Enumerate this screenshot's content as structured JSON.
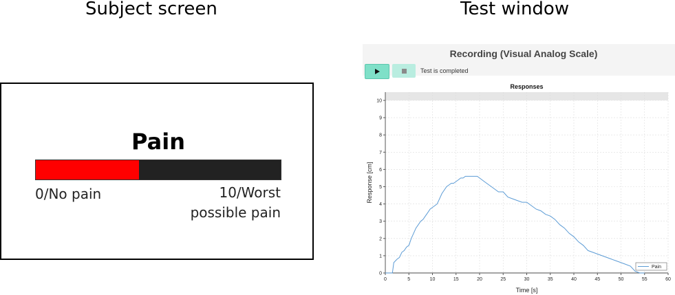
{
  "headings": {
    "subject": "Subject screen",
    "test": "Test window"
  },
  "subject_screen": {
    "title": "Pain",
    "scale_value": 4.2,
    "scale_max": 10,
    "fill_color": "#ff0000",
    "left_anchor": "0/No pain",
    "right_anchor_line1": "10/Worst",
    "right_anchor_line2": "possible pain"
  },
  "test_window": {
    "title": "Recording (Visual Analog Scale)",
    "play_icon": "play-icon",
    "stop_icon": "stop-icon",
    "status": "Test is completed"
  },
  "chart_data": {
    "type": "line",
    "title": "Responses",
    "xlabel": "Time [s]",
    "ylabel": "Response [cm]",
    "xlim": [
      0,
      60
    ],
    "ylim": [
      0,
      10
    ],
    "xticks": [
      0,
      5,
      10,
      15,
      20,
      25,
      30,
      35,
      40,
      45,
      50,
      55,
      60
    ],
    "yticks": [
      0,
      1,
      2,
      3,
      4,
      5,
      6,
      7,
      8,
      9,
      10
    ],
    "grid": true,
    "legend": "bottom-right",
    "series": [
      {
        "name": "Pain",
        "color": "#5b9bd5",
        "x": [
          0,
          1.5,
          1.8,
          2.5,
          3,
          3.5,
          4,
          4.5,
          5,
          5.5,
          6,
          6.5,
          7,
          7.5,
          8,
          8.5,
          9,
          9.5,
          10,
          10.5,
          11,
          11.5,
          12,
          12.5,
          13,
          13.5,
          14,
          14.5,
          15,
          15.5,
          16,
          16.5,
          17,
          17.5,
          18,
          18.5,
          19,
          19.5,
          20,
          21,
          22,
          23,
          24,
          25,
          26,
          27,
          28,
          29,
          30,
          31,
          32,
          33,
          34,
          35,
          36,
          37,
          38,
          39,
          40,
          41,
          42,
          43,
          44,
          45,
          46,
          47,
          48,
          49,
          50,
          51,
          52,
          53,
          54,
          55
        ],
        "y": [
          0,
          0,
          0.6,
          0.8,
          0.9,
          1.2,
          1.3,
          1.5,
          1.6,
          2.0,
          2.3,
          2.6,
          2.8,
          3.0,
          3.1,
          3.3,
          3.5,
          3.7,
          3.8,
          3.9,
          4.0,
          4.3,
          4.6,
          4.8,
          5.0,
          5.1,
          5.2,
          5.2,
          5.3,
          5.4,
          5.5,
          5.5,
          5.6,
          5.6,
          5.6,
          5.6,
          5.6,
          5.6,
          5.5,
          5.3,
          5.1,
          4.9,
          4.7,
          4.7,
          4.4,
          4.3,
          4.2,
          4.1,
          4.1,
          3.9,
          3.7,
          3.6,
          3.4,
          3.3,
          3.1,
          2.8,
          2.6,
          2.3,
          2.1,
          1.8,
          1.6,
          1.3,
          1.2,
          1.1,
          1.0,
          0.9,
          0.8,
          0.7,
          0.6,
          0.5,
          0.4,
          0.1,
          0,
          0
        ]
      }
    ]
  }
}
